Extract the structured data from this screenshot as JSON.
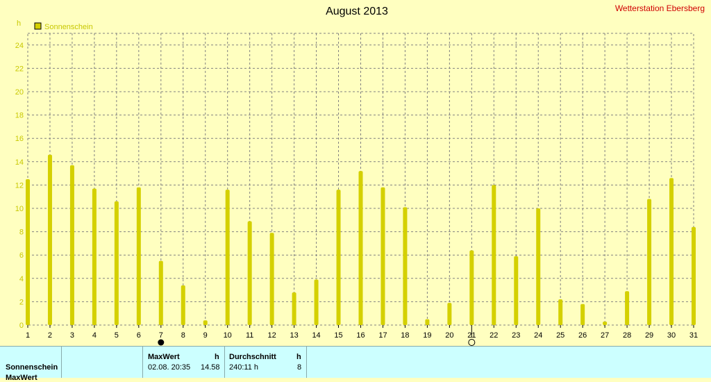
{
  "header": {
    "title": "August 2013",
    "station": "Wetterstation Ebersberg",
    "unit": "h",
    "legend_label": "Sonnenschein"
  },
  "colors": {
    "background": "#ffffc0",
    "bar": "#d4d000",
    "grid": "#808080",
    "axis_text": "#c8c800",
    "station_text": "#d00000",
    "panel": "#ccffff"
  },
  "chart_data": {
    "type": "bar",
    "legend": "Sonnenschein",
    "ylabel": "h",
    "ylim": [
      0,
      25
    ],
    "yticks": [
      0,
      2,
      4,
      6,
      8,
      10,
      12,
      14,
      16,
      18,
      20,
      22,
      24
    ],
    "xticks": [
      "1",
      "2",
      "3",
      "4",
      "5",
      "6",
      "7",
      "8",
      "9",
      "10",
      "11",
      "12",
      "13",
      "14",
      "15",
      "16",
      "17",
      "18",
      "19",
      "20",
      "21",
      "22",
      "23",
      "24",
      "25",
      "26",
      "27",
      "28",
      "29",
      "30",
      "31"
    ],
    "grid": true,
    "legend_position": "top-left",
    "series": [
      {
        "name": "Sonnenschein",
        "values": [
          12.5,
          14.6,
          13.7,
          11.7,
          10.6,
          11.8,
          5.5,
          3.4,
          0.4,
          11.6,
          8.9,
          7.9,
          2.8,
          3.9,
          11.6,
          13.2,
          11.8,
          10.1,
          0.5,
          1.9,
          6.4,
          12.0,
          5.9,
          10.0,
          2.2,
          1.8,
          0.3,
          2.9,
          10.8,
          12.6,
          8.4
        ]
      }
    ],
    "markers": [
      {
        "day": 7,
        "type": "filled-circle"
      },
      {
        "day": 21,
        "type": "open-circle"
      }
    ]
  },
  "stats": {
    "row_label": "Sonnenschein",
    "row_label_next": "MaxWert",
    "max_header": "MaxWert",
    "max_unit": "h",
    "max_datetime": "02.08.  20:35",
    "max_value": "14.58",
    "avg_header": "Durchschnitt",
    "avg_unit": "h",
    "avg_total": "240:11 h",
    "avg_value": "8"
  }
}
